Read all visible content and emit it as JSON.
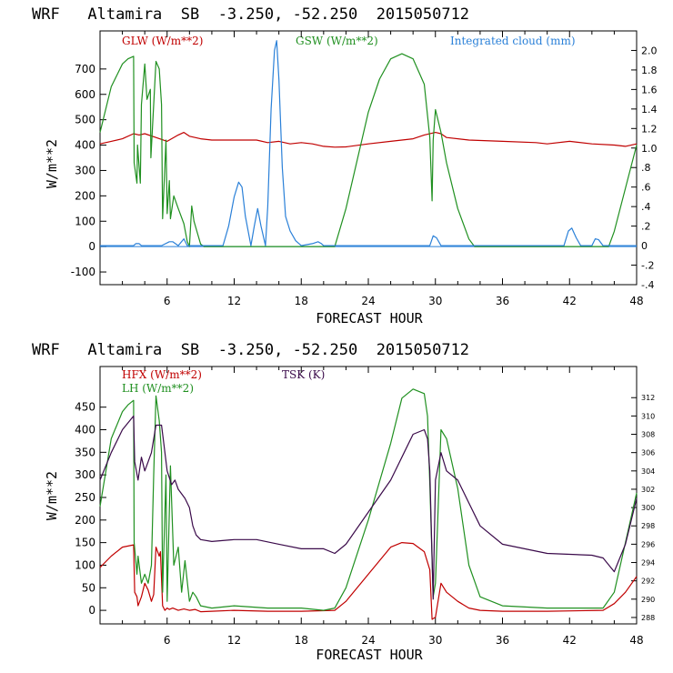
{
  "chart_data": [
    {
      "type": "line",
      "title": "WRF   Altamira  SB  -3.250, -52.250  2015050712",
      "xlabel": "FORECAST HOUR",
      "ylabel": "W/m**2",
      "xlim": [
        0,
        48
      ],
      "ylim": [
        -150,
        850
      ],
      "x_ticks": [
        "6",
        "12",
        "18",
        "24",
        "30",
        "36",
        "42",
        "48"
      ],
      "y_ticks": [
        "-100",
        "0",
        "100",
        "200",
        "300",
        "400",
        "500",
        "600",
        "700"
      ],
      "y2lim": [
        -0.4,
        2.2
      ],
      "y2_ticks": [
        "-.4",
        "-.2",
        "0",
        ".2",
        ".4",
        ".6",
        ".8",
        "1.0",
        "1.2",
        "1.4",
        "1.6",
        "1.8",
        "2.0"
      ],
      "series": [
        {
          "name": "GLW (W/m**2)",
          "color": "#c00000",
          "axis": "left",
          "x": [
            0,
            1,
            2,
            3,
            3.5,
            4,
            5,
            6,
            7,
            7.5,
            8,
            9,
            10,
            12,
            14,
            15,
            16,
            17,
            18,
            19,
            20,
            21,
            22,
            24,
            26,
            28,
            29,
            30,
            30.5,
            31,
            33,
            36,
            39,
            40,
            42,
            44,
            46,
            47,
            48
          ],
          "y": [
            405,
            415,
            425,
            445,
            440,
            445,
            430,
            415,
            440,
            450,
            435,
            425,
            420,
            420,
            420,
            410,
            415,
            405,
            410,
            405,
            395,
            392,
            393,
            405,
            415,
            425,
            440,
            450,
            445,
            430,
            420,
            415,
            410,
            405,
            415,
            405,
            400,
            395,
            405
          ]
        },
        {
          "name": "GSW (W/m**2)",
          "color": "#209020",
          "axis": "left",
          "x": [
            0,
            1,
            2,
            2.5,
            3,
            3.05,
            3.3,
            3.35,
            3.6,
            3.7,
            4,
            4.2,
            4.5,
            4.55,
            5,
            5.3,
            5.5,
            5.6,
            5.9,
            6,
            6.2,
            6.3,
            6.6,
            7,
            7.5,
            7.8,
            8,
            8.2,
            8.4,
            9,
            9.3,
            21,
            22,
            23,
            24,
            25,
            26,
            27,
            28,
            29,
            29.5,
            29.7,
            29.8,
            30,
            30.5,
            31,
            32,
            33,
            33.5,
            45.5,
            46,
            47,
            48
          ],
          "y": [
            450,
            630,
            720,
            740,
            750,
            330,
            250,
            400,
            250,
            560,
            720,
            580,
            620,
            350,
            730,
            700,
            560,
            110,
            420,
            130,
            260,
            110,
            200,
            150,
            90,
            20,
            0,
            160,
            100,
            10,
            0,
            0,
            150,
            340,
            530,
            660,
            740,
            760,
            740,
            640,
            430,
            180,
            420,
            540,
            450,
            330,
            150,
            30,
            0,
            0,
            60,
            230,
            400
          ]
        },
        {
          "name": "Integrated cloud (mm)",
          "color": "#2a80d8",
          "axis": "right",
          "x": [
            0,
            3,
            3.2,
            3.5,
            3.7,
            5.5,
            6.2,
            6.5,
            7,
            7.5,
            7.8,
            8.5,
            11,
            11.5,
            12,
            12.4,
            12.7,
            13,
            13.5,
            13.8,
            14.1,
            14.4,
            14.8,
            15,
            15.3,
            15.6,
            15.8,
            16,
            16.3,
            16.6,
            17,
            17.5,
            18,
            19,
            19.5,
            19.8,
            20,
            29.5,
            29.8,
            30.1,
            30.5,
            41.5,
            41.9,
            42.2,
            42.6,
            43,
            44,
            44.3,
            44.6,
            45,
            48
          ],
          "y": [
            0,
            0,
            0.02,
            0.02,
            0,
            0,
            0.04,
            0.04,
            0,
            0.07,
            0,
            0,
            0,
            0.2,
            0.5,
            0.65,
            0.6,
            0.3,
            0,
            0.2,
            0.38,
            0.2,
            0,
            0.4,
            1.4,
            2.0,
            2.1,
            1.7,
            0.8,
            0.3,
            0.15,
            0.05,
            0,
            0.02,
            0.04,
            0.02,
            0,
            0,
            0.1,
            0.08,
            0,
            0,
            0.15,
            0.18,
            0.08,
            0,
            0,
            0.07,
            0.06,
            0,
            0
          ]
        }
      ]
    },
    {
      "type": "line",
      "title": "WRF   Altamira  SB  -3.250, -52.250  2015050712",
      "xlabel": "FORECAST HOUR",
      "ylabel": "W/m**2",
      "xlim": [
        0,
        48
      ],
      "ylim": [
        -30,
        540
      ],
      "x_ticks": [
        "6",
        "12",
        "18",
        "24",
        "30",
        "36",
        "42",
        "48"
      ],
      "y_ticks": [
        "0",
        "50",
        "100",
        "150",
        "200",
        "250",
        "300",
        "350",
        "400",
        "450"
      ],
      "y2lim": [
        287.3,
        315.4
      ],
      "y2_ticks": [
        "288",
        "290",
        "292",
        "294",
        "296",
        "298",
        "300",
        "302",
        "304",
        "306",
        "308",
        "310",
        "312"
      ],
      "series": [
        {
          "name": "HFX (W/m**2)",
          "color": "#c00000",
          "axis": "left",
          "x": [
            0,
            1,
            2,
            3,
            3.1,
            3.3,
            3.4,
            3.7,
            4,
            4.3,
            4.6,
            4.8,
            5,
            5.3,
            5.4,
            5.6,
            5.8,
            6,
            6.2,
            6.5,
            7,
            7.5,
            8,
            8.5,
            9,
            10,
            12,
            15,
            18,
            21,
            22,
            24,
            26,
            27,
            28,
            29,
            29.5,
            29.7,
            30,
            30.5,
            31,
            32,
            33,
            34,
            36,
            40,
            45,
            46,
            47,
            48
          ],
          "y": [
            95,
            120,
            140,
            145,
            40,
            30,
            10,
            30,
            60,
            45,
            20,
            35,
            140,
            120,
            130,
            10,
            0,
            5,
            2,
            5,
            0,
            3,
            0,
            2,
            -3,
            -2,
            0,
            -2,
            -2,
            0,
            20,
            80,
            140,
            150,
            148,
            130,
            90,
            -20,
            -15,
            60,
            40,
            20,
            5,
            0,
            -2,
            -2,
            0,
            15,
            40,
            75
          ]
        },
        {
          "name": "LH (W/m**2)",
          "color": "#209020",
          "axis": "left",
          "x": [
            0,
            1,
            2,
            2.5,
            3,
            3.05,
            3.3,
            3.4,
            3.7,
            4,
            4.3,
            4.6,
            4.8,
            5,
            5.3,
            5.5,
            5.6,
            5.9,
            6,
            6.3,
            6.6,
            7,
            7.3,
            7.6,
            8,
            8.3,
            8.6,
            9,
            10,
            12,
            15,
            18,
            20,
            21,
            22,
            24,
            26,
            27,
            28,
            29,
            29.3,
            29.5,
            29.8,
            30,
            30.5,
            31,
            32,
            33,
            34,
            36,
            40,
            45,
            46,
            47,
            48
          ],
          "y": [
            230,
            380,
            440,
            455,
            465,
            150,
            80,
            120,
            60,
            80,
            60,
            100,
            300,
            475,
            420,
            350,
            40,
            300,
            20,
            320,
            100,
            140,
            40,
            110,
            20,
            40,
            30,
            10,
            5,
            10,
            5,
            5,
            0,
            5,
            50,
            200,
            370,
            470,
            490,
            480,
            430,
            280,
            30,
            60,
            400,
            380,
            270,
            100,
            30,
            10,
            5,
            5,
            40,
            150,
            260
          ]
        },
        {
          "name": "TSK (K)",
          "color": "#3a0a4a",
          "axis": "right",
          "x": [
            0,
            1,
            2,
            3,
            3.1,
            3.4,
            3.7,
            4,
            4.3,
            4.6,
            5,
            5.5,
            5.7,
            6,
            6.4,
            6.7,
            7,
            7.3,
            7.6,
            8,
            8.3,
            8.6,
            9,
            10,
            12,
            14,
            16,
            18,
            20,
            21,
            22,
            24,
            26,
            27,
            28,
            29,
            29.3,
            29.5,
            29.8,
            30,
            30.5,
            31,
            32,
            33,
            34,
            36,
            40,
            44,
            45,
            46,
            47,
            48
          ],
          "y": [
            303,
            306,
            308.5,
            310,
            305,
            303,
            305.5,
            304,
            305,
            306,
            309,
            309,
            307,
            304,
            302.5,
            303,
            302,
            301.5,
            301,
            300,
            298,
            297,
            296.5,
            296.3,
            296.5,
            296.5,
            296,
            295.5,
            295.5,
            295,
            296,
            299.5,
            303,
            305.5,
            308,
            308.5,
            307.5,
            304,
            290,
            303,
            306,
            304,
            303,
            300.5,
            298,
            296,
            295,
            294.8,
            294.5,
            293,
            296,
            301
          ]
        }
      ]
    }
  ]
}
